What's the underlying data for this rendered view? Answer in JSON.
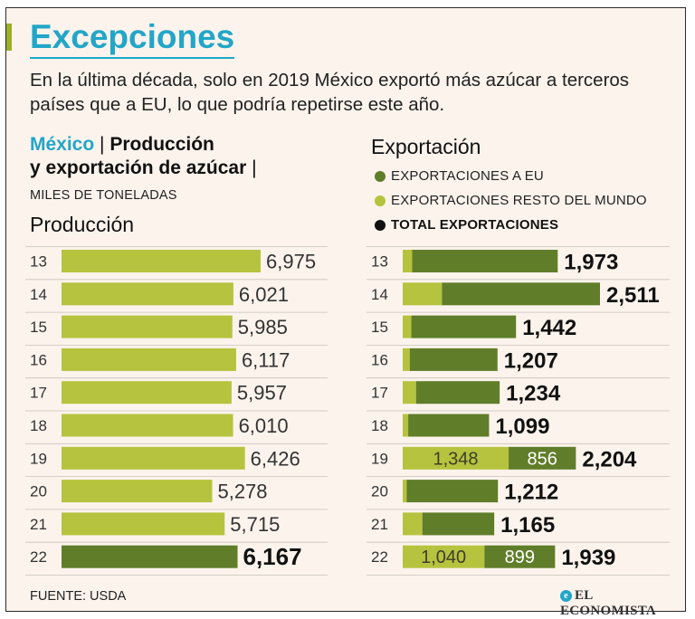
{
  "header": {
    "title": "Excepciones",
    "subtitle_line1": "En la última década, solo en 2019 México exportó más azúcar a terceros",
    "subtitle_line2": "países que a EU, lo que podría repetirse este año.",
    "country": "México",
    "heading_part1": "Producción",
    "heading_part2": "y exportación de azúcar",
    "separator": "|",
    "units": "MILES DE TONELADAS"
  },
  "legend": {
    "exports_title": "Exportación",
    "eu_label": "EXPORTACIONES A EU",
    "rest_label": "EXPORTACIONES RESTO DEL MUNDO",
    "total_label": "TOTAL EXPORTACIONES"
  },
  "footer": {
    "source": "FUENTE: USDA",
    "logo": "EL ECONOMISTA",
    "logo_mark": "e"
  },
  "colors": {
    "eu": "#607d29",
    "rest": "#b6c33e",
    "production": "#b6c33e",
    "production_highlight": "#607d29",
    "accent": "#22a6c7",
    "text": "#111111"
  },
  "chart_data": [
    {
      "type": "bar",
      "title": "Producción",
      "categories": [
        "13",
        "14",
        "15",
        "16",
        "17",
        "18",
        "19",
        "20",
        "21",
        "22"
      ],
      "values": [
        6975,
        6021,
        5985,
        6117,
        5957,
        6010,
        6426,
        5278,
        5715,
        6167
      ],
      "value_labels": [
        "6,975",
        "6,021",
        "5,985",
        "6,117",
        "5,957",
        "6,010",
        "6,426",
        "5,278",
        "5,715",
        "6,167"
      ],
      "highlight_index": 9
    },
    {
      "type": "bar",
      "stacked": true,
      "title": "Exportación",
      "categories": [
        "13",
        "14",
        "15",
        "16",
        "17",
        "18",
        "19",
        "20",
        "21",
        "22"
      ],
      "series": [
        {
          "name": "EXPORTACIONES RESTO DEL MUNDO",
          "values": [
            120,
            500,
            110,
            90,
            170,
            70,
            1348,
            50,
            250,
            1040
          ]
        },
        {
          "name": "EXPORTACIONES A EU",
          "values": [
            1853,
            2011,
            1332,
            1117,
            1064,
            1029,
            856,
            1162,
            915,
            899
          ]
        }
      ],
      "totals": [
        1973,
        2511,
        1442,
        1207,
        1234,
        1099,
        2204,
        1212,
        1165,
        1939
      ],
      "total_labels": [
        "1,973",
        "2,511",
        "1,442",
        "1,207",
        "1,234",
        "1,099",
        "2,204",
        "1,212",
        "1,165",
        "1,939"
      ],
      "segment_labels": [
        {
          "index": 6,
          "rest": "1,348",
          "eu": "856"
        },
        {
          "index": 9,
          "rest": "1,040",
          "eu": "899"
        }
      ]
    }
  ]
}
